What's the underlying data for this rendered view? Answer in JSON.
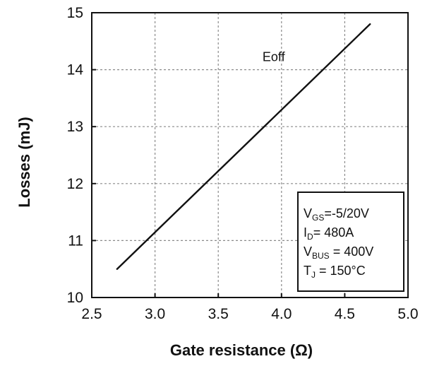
{
  "chart_data": {
    "type": "line",
    "title": "",
    "xlabel": "Gate resistance (Ω)",
    "ylabel": "Losses (mJ)",
    "xlim": [
      2.5,
      5.0
    ],
    "ylim": [
      10,
      15
    ],
    "grid": true,
    "x_ticks": [
      "2.5",
      "3.0",
      "3.5",
      "4.0",
      "4.5",
      "5.0"
    ],
    "y_ticks": [
      "10",
      "11",
      "12",
      "13",
      "14",
      "15"
    ],
    "series": [
      {
        "name": "Eoff",
        "x": [
          2.7,
          4.7
        ],
        "y": [
          10.5,
          14.8
        ]
      }
    ],
    "annotation_lines": [
      {
        "main": "V",
        "sub": "GS",
        "rest": "=-5/20V"
      },
      {
        "main": "I",
        "sub": "D",
        "rest": "= 480A"
      },
      {
        "main": "V",
        "sub": "BUS",
        "rest": " = 400V"
      },
      {
        "main": "T",
        "sub": "J",
        "rest": " = 150°C"
      }
    ],
    "colors": {
      "line": "#111111",
      "grid": "#8a8a8a",
      "axis": "#111111"
    }
  }
}
